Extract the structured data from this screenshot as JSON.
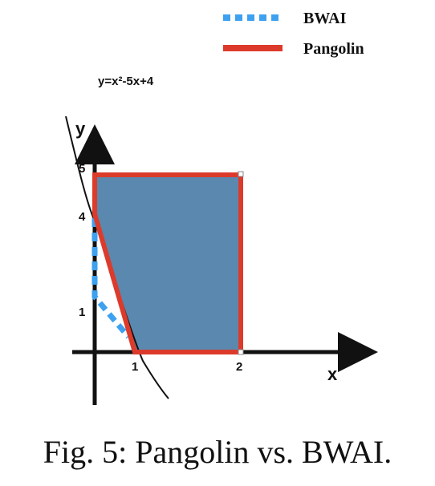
{
  "legend": {
    "items": [
      {
        "label": "BWAI",
        "style": "dashed",
        "color": "#3ea1f0"
      },
      {
        "label": "Pangolin",
        "style": "solid",
        "color": "#dc3b2c"
      }
    ]
  },
  "diagram": {
    "equation": "y=x²-5x+4",
    "x_axis_label": "x",
    "y_axis_label": "y",
    "x_ticks": [
      "1",
      "2"
    ],
    "y_ticks": [
      "5",
      "4",
      "1"
    ],
    "fill_color": "#5a88ae"
  },
  "caption": "Fig. 5: Pangolin vs. BWAI."
}
